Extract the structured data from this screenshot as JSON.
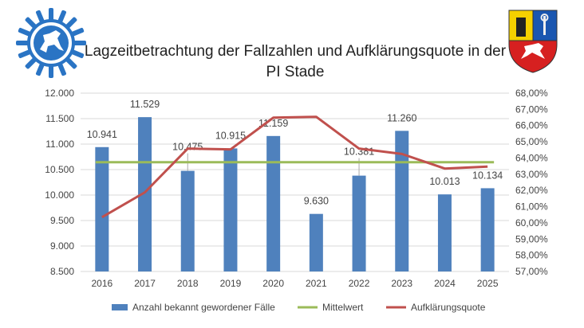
{
  "title": "Lagzeitbetrachtung der Fallzahlen und Aufklärungsquote in der PI Stade",
  "logos": {
    "left": "police-star-emblem",
    "right": "coat-of-arms"
  },
  "chart_data": {
    "type": "bar",
    "title": "Lagzeitbetrachtung der Fallzahlen und Aufklärungsquote in der PI Stade",
    "categories": [
      "2016",
      "2017",
      "2018",
      "2019",
      "2020",
      "2021",
      "2022",
      "2023",
      "2024",
      "2025"
    ],
    "series": [
      {
        "name": "Anzahl bekannt gewordener Fälle",
        "type": "bar",
        "axis": "left",
        "color": "#4F81BD",
        "values": [
          10941,
          11529,
          10475,
          10915,
          11159,
          9630,
          10381,
          11260,
          10013,
          10134
        ],
        "labels": [
          "10.941",
          "11.529",
          "10.475",
          "10.915",
          "11.159",
          "9.630",
          "10.381",
          "11.260",
          "10.013",
          "10.134"
        ]
      },
      {
        "name": "Mittelwert",
        "type": "line",
        "axis": "left",
        "color": "#9BBB59",
        "values": [
          10644,
          10644,
          10644,
          10644,
          10644,
          10644,
          10644,
          10644,
          10644,
          10644
        ]
      },
      {
        "name": "Aufklärungsquote",
        "type": "line",
        "axis": "right",
        "color": "#C0504D",
        "values": [
          60.35,
          61.88,
          64.58,
          64.53,
          66.49,
          66.54,
          64.58,
          64.25,
          63.35,
          63.47
        ]
      }
    ],
    "yleft": {
      "ylim": [
        8500,
        12000
      ],
      "ticks": [
        "8.500",
        "9.000",
        "9.500",
        "10.000",
        "10.500",
        "11.000",
        "11.500",
        "12.000"
      ]
    },
    "yright": {
      "ylim": [
        57,
        68
      ],
      "ticks": [
        "57,00%",
        "58,00%",
        "59,00%",
        "60,00%",
        "61,00%",
        "62,00%",
        "63,00%",
        "64,00%",
        "65,00%",
        "66,00%",
        "67,00%",
        "68,00%"
      ]
    },
    "grid": true,
    "legend": "bottom"
  }
}
